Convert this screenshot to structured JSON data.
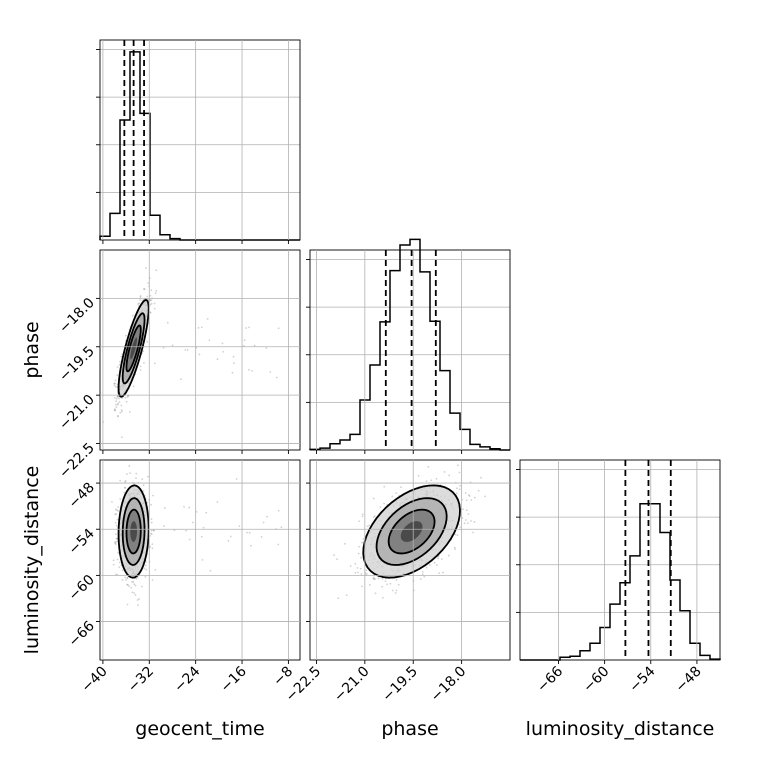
{
  "chart_data": {
    "type": "corner",
    "parameters": [
      "geocent_time",
      "phase",
      "luminosity_distance"
    ],
    "axis_labels": {
      "geocent_time": "geocent_time",
      "phase": "phase",
      "luminosity_distance": "luminosity_distance"
    },
    "ranges": {
      "geocent_time": [
        -40.5,
        -6.0
      ],
      "phase": [
        -22.7,
        -16.5
      ],
      "luminosity_distance": [
        -71.0,
        -45.0
      ]
    },
    "ticks": {
      "geocent_time": [
        -40,
        -32,
        -24,
        -16,
        -8
      ],
      "phase": [
        -22.5,
        -21.0,
        -19.5,
        -18.0
      ],
      "luminosity_distance": [
        -66,
        -60,
        -54,
        -48
      ]
    },
    "tick_labels": {
      "geocent_time": [
        "−40",
        "−32",
        "−24",
        "−16",
        "−8"
      ],
      "phase": [
        "−22.5",
        "−21.0",
        "−19.5",
        "−18.0"
      ],
      "luminosity_distance": [
        "−66",
        "−60",
        "−54",
        "−48"
      ]
    },
    "quantiles": {
      "geocent_time": [
        -36.3,
        -34.7,
        -32.9
      ],
      "phase": [
        -20.35,
        -19.55,
        -18.8
      ],
      "luminosity_distance": [
        -57.3,
        -54.3,
        -51.4
      ]
    },
    "means": {
      "geocent_time": -34.7,
      "phase": -19.55,
      "luminosity_distance": -54.3
    },
    "stds": {
      "geocent_time": 1.3,
      "phase": 0.75,
      "luminosity_distance": 3.0
    },
    "histograms": {
      "geocent_time": {
        "edges": [
          -40.5,
          -38.775,
          -37.05,
          -35.325,
          -33.6,
          -31.875,
          -30.15,
          -28.425,
          -26.7,
          -24.975,
          -23.25,
          -21.525,
          -19.8,
          -18.075,
          -16.35,
          -14.625,
          -12.9,
          -11.175,
          -9.45,
          -7.725,
          -6.0
        ],
        "counts": [
          0.08,
          0.56,
          2.52,
          3.95,
          2.66,
          0.52,
          0.11,
          0.03,
          0.0,
          0.0,
          0.0,
          0.0,
          0.0,
          0.0,
          0.0,
          0.0,
          0.0,
          0.0,
          0.0,
          0.0
        ],
        "ylim": [
          0,
          4.2
        ]
      },
      "phase": {
        "edges": [
          -22.7,
          -22.39,
          -22.08,
          -21.77,
          -21.46,
          -21.15,
          -20.84,
          -20.53,
          -20.22,
          -19.91,
          -19.6,
          -19.29,
          -18.98,
          -18.67,
          -18.36,
          -18.05,
          -17.74,
          -17.43,
          -17.12,
          -16.81,
          -16.5
        ],
        "counts": [
          0.01,
          0.03,
          0.1,
          0.16,
          0.25,
          0.8,
          1.36,
          2.05,
          2.87,
          3.28,
          3.37,
          2.85,
          2.06,
          1.27,
          0.59,
          0.33,
          0.09,
          0.05,
          0.02,
          0.0
        ],
        "ylim": [
          0,
          3.2
        ]
      },
      "luminosity_distance": {
        "edges": [
          -71.0,
          -69.7,
          -68.4,
          -67.1,
          -65.8,
          -64.5,
          -63.2,
          -61.9,
          -60.6,
          -59.3,
          -58.0,
          -56.7,
          -55.4,
          -54.1,
          -52.8,
          -51.5,
          -50.2,
          -48.9,
          -47.6,
          -46.3,
          -45.0
        ],
        "counts": [
          0.0,
          0.0,
          0.0,
          0.0,
          0.03,
          0.04,
          0.1,
          0.18,
          0.35,
          0.6,
          0.83,
          1.12,
          1.68,
          1.68,
          1.37,
          0.86,
          0.53,
          0.18,
          0.05,
          0.01
        ],
        "ylim": [
          0,
          2.15
        ]
      }
    },
    "pairs": [
      {
        "x": "geocent_time",
        "y": "phase",
        "correlation": 0.82
      },
      {
        "x": "geocent_time",
        "y": "luminosity_distance",
        "correlation": 0.05
      },
      {
        "x": "phase",
        "y": "luminosity_distance",
        "correlation": 0.45
      }
    ],
    "grid": true,
    "colors": {
      "line": "#000000",
      "grid": "#b0b0b0",
      "scatter": "#7a7a7a"
    }
  }
}
